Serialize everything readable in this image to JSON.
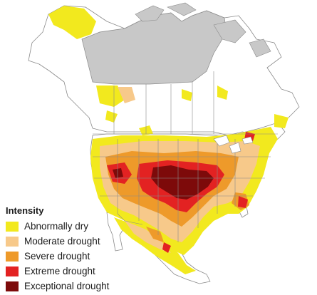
{
  "legend": {
    "title": "Intensity",
    "items": [
      {
        "label": "Abnormally dry",
        "color": "#f2e91e"
      },
      {
        "label": "Moderate drought",
        "color": "#f7c98a"
      },
      {
        "label": "Severe drought",
        "color": "#ee9a2a"
      },
      {
        "label": "Extreme drought",
        "color": "#e32222"
      },
      {
        "label": "Exceptional drought",
        "color": "#7d0a0a"
      }
    ]
  },
  "colors": {
    "land": "#ffffff",
    "border": "#8a8a8a",
    "no_data_region": "#c8c8c8",
    "water": "#ffffff"
  }
}
